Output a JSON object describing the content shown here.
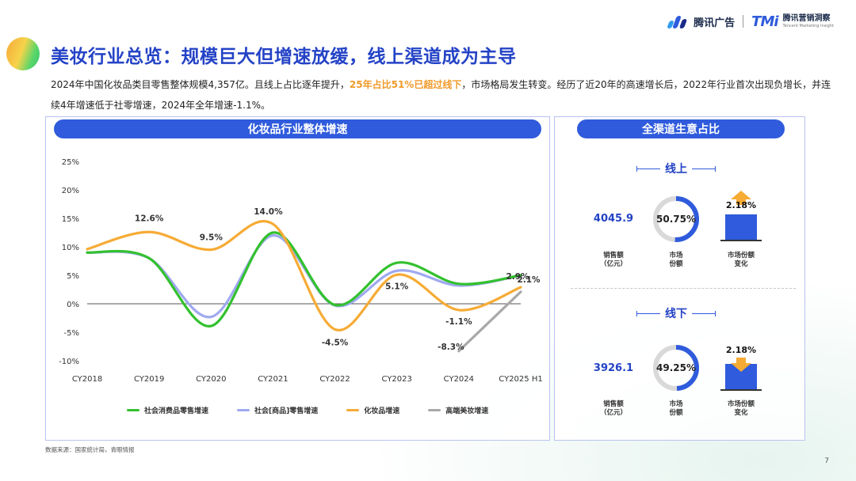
{
  "header": {
    "brand": "腾讯广告",
    "tmi_logo": "TMi",
    "tmi_name": "腾讯营销洞察",
    "tmi_en": "Tencent Marketing Insight"
  },
  "title": "美妆行业总览：规模巨大但增速放缓，线上渠道成为主导",
  "intro": {
    "part1": "2024年中国化妆品类目零售整体规模4,357亿。且线上占比逐年提升，",
    "highlight": "25年占比51%已超过线下",
    "part2": "，市场格局发生转变。经历了近20年的高速增长后，2022年行业首次出现负增长，并连续4年增速低于社零增速，2024年全年增速-1.1%。"
  },
  "left_panel_title": "化妆品行业整体增速",
  "right_panel_title": "全渠道生意占比",
  "chart_data": {
    "type": "line",
    "categories": [
      "CY2018",
      "CY2019",
      "CY2020",
      "CY2021",
      "CY2022",
      "CY2023",
      "CY2024",
      "CY2025 H1"
    ],
    "y_ticks": [
      "25%",
      "20%",
      "15%",
      "10%",
      "5%",
      "0%",
      "-5%",
      "-10%"
    ],
    "ylim": [
      -10,
      25
    ],
    "series": [
      {
        "name": "社会消费品零售增速",
        "color": "#33c12f",
        "values": [
          9.0,
          8.0,
          -3.9,
          12.5,
          -0.2,
          7.2,
          3.5,
          5.0
        ]
      },
      {
        "name": "社会[商品]零售增速",
        "color": "#9fa9ef",
        "values": [
          9.0,
          8.0,
          -2.3,
          12.0,
          -0.3,
          5.8,
          3.2,
          5.0
        ]
      },
      {
        "name": "化妆品增速",
        "color": "#f6ab35",
        "values": [
          9.6,
          12.6,
          9.5,
          14.0,
          -4.5,
          5.1,
          -1.1,
          2.9
        ]
      },
      {
        "name": "高端美妆增速",
        "color": "#a8a8a8",
        "values": [
          null,
          null,
          null,
          null,
          null,
          null,
          -8.3,
          2.1
        ]
      }
    ],
    "data_labels": [
      {
        "series": 2,
        "index": 1,
        "text": "12.6%"
      },
      {
        "series": 2,
        "index": 2,
        "text": "9.5%"
      },
      {
        "series": 2,
        "index": 3,
        "text": "14.0%"
      },
      {
        "series": 2,
        "index": 4,
        "text": "-4.5%"
      },
      {
        "series": 2,
        "index": 5,
        "text": "5.1%"
      },
      {
        "series": 2,
        "index": 6,
        "text": "-1.1%"
      },
      {
        "series": 2,
        "index": 7,
        "text": "2.9%"
      },
      {
        "series": 3,
        "index": 6,
        "text": "-8.3%"
      },
      {
        "series": 3,
        "index": 7,
        "text": "2.1%"
      }
    ],
    "legend_position": "bottom"
  },
  "online": {
    "label": "线上",
    "sales": "4045.9",
    "sales_label": "销售额",
    "sales_unit": "（亿元）",
    "share": "50.75%",
    "share_value": 50.75,
    "share_label1": "市场",
    "share_label2": "份额",
    "change": "2.18%",
    "change_direction": "up",
    "change_label1": "市场份额",
    "change_label2": "变化"
  },
  "offline": {
    "label": "线下",
    "sales": "3926.1",
    "sales_label": "销售额",
    "sales_unit": "（亿元）",
    "share": "49.25%",
    "share_value": 49.25,
    "share_label1": "市场",
    "share_label2": "份额",
    "change": "2.18%",
    "change_direction": "down",
    "change_label1": "市场份额",
    "change_label2": "变化"
  },
  "colors": {
    "accent": "#2f5bdc",
    "arrow": "#f6ab35",
    "donut_track": "#d9d9d9"
  },
  "source": "数据来源：国家统计局，青眼情报",
  "page_number": "7"
}
